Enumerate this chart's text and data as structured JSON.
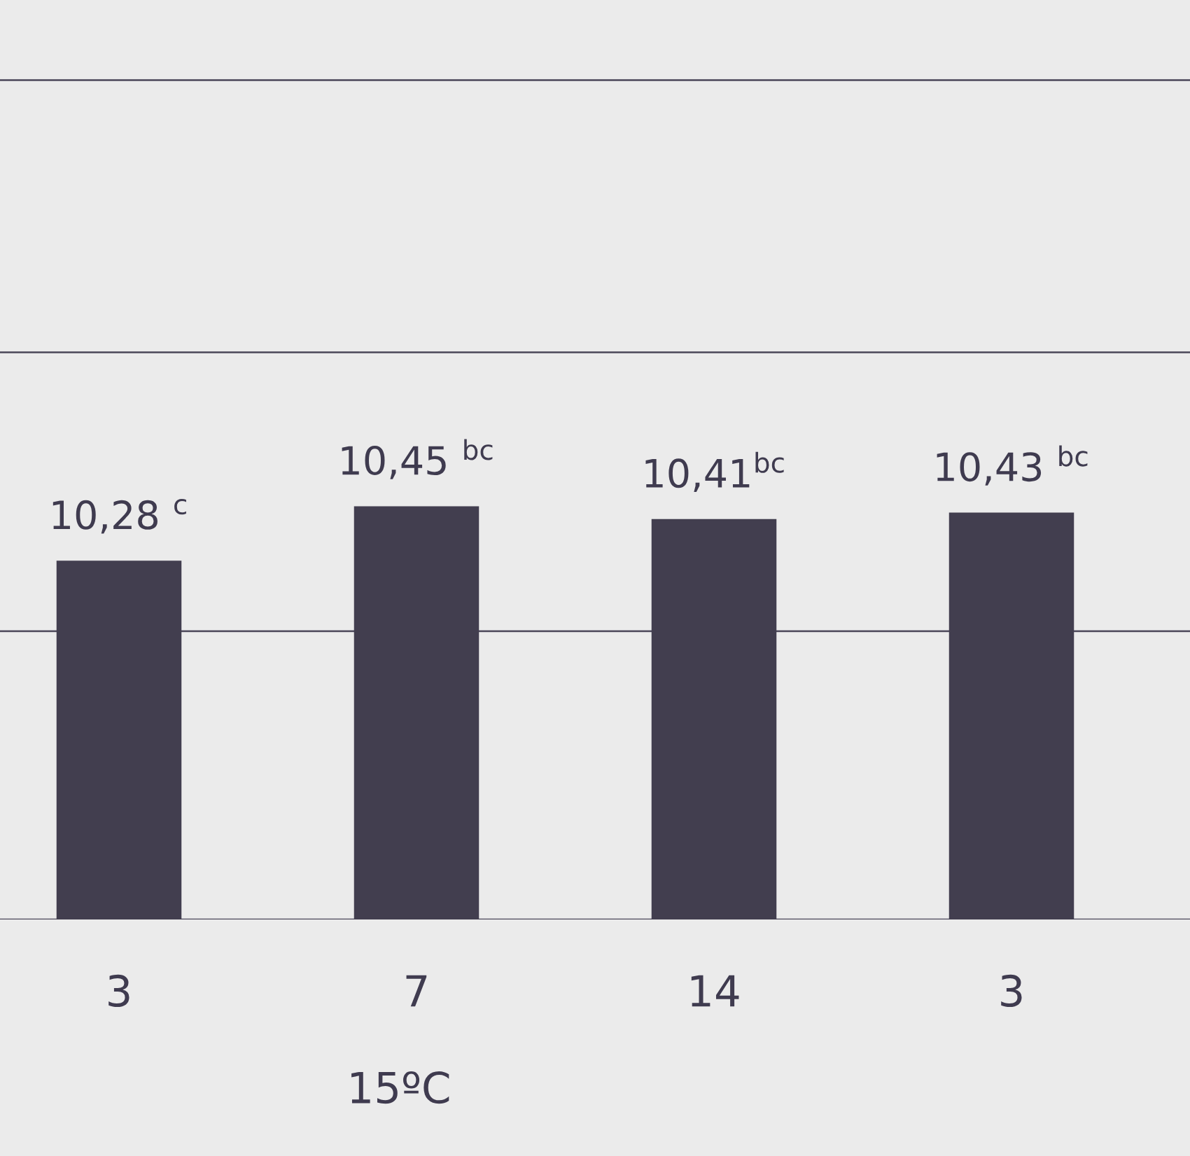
{
  "chart_data": {
    "type": "bar",
    "categories": [
      "3",
      "7",
      "14",
      "3"
    ],
    "values": [
      10.28,
      10.45,
      10.41,
      10.43
    ],
    "value_labels": [
      "10,28 $^{c}$",
      "10,45 $^{bc}$",
      "10,41$^{bc}$",
      "10,43 $^{bc}$"
    ],
    "color": "#423e4f",
    "ylim": [
      9.16,
      12.03
    ],
    "yticks": [
      {
        "value": 9.16,
        "label": null
      },
      {
        "value": 10.06,
        "label": null
      },
      {
        "value": 10.93,
        "label": null
      },
      {
        "value": 11.78,
        "label": null
      }
    ],
    "grid": "y",
    "annotations": [
      "15ºC"
    ]
  }
}
